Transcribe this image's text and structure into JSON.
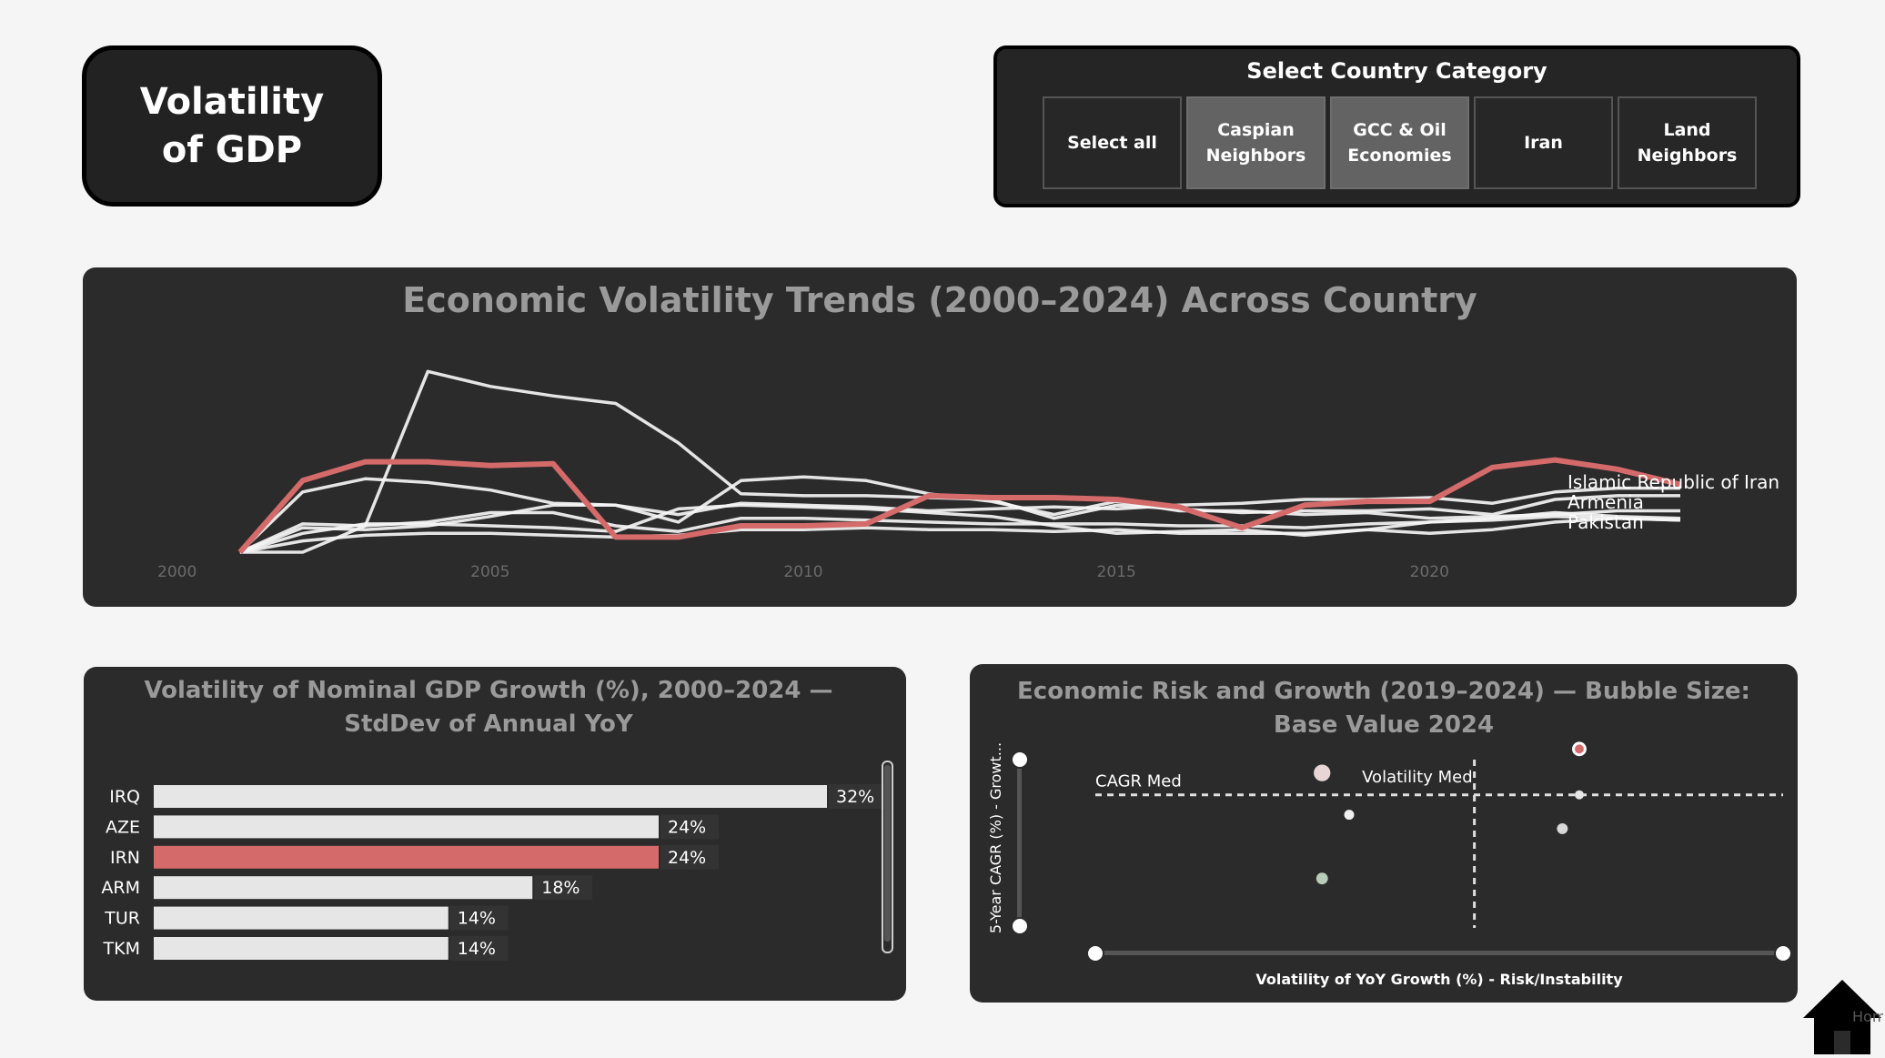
{
  "page": {
    "title": "Volatility of GDP",
    "home_label": "Home"
  },
  "slicer": {
    "title": "Select Country Category",
    "options": [
      {
        "label": "Select all",
        "selected": false
      },
      {
        "label": "Caspian Neighbors",
        "selected": true
      },
      {
        "label": "GCC & Oil Economies",
        "selected": true
      },
      {
        "label": "Iran",
        "selected": false
      },
      {
        "label": "Land Neighbors",
        "selected": false
      }
    ]
  },
  "chart_data": [
    {
      "type": "line",
      "title": "Economic Volatility Trends (2000–2024) Across Country",
      "x_ticks": [
        "2000",
        "2005",
        "2010",
        "2015",
        "2020"
      ],
      "xlim": [
        2000,
        2024
      ],
      "ylim": [
        0,
        10
      ],
      "highlight_color": "#d46a6a",
      "line_color": "#f5f5f5",
      "series": [
        {
          "name": "Islamic Republic of Iran",
          "highlight": true,
          "values": [
            [
              2001,
              0
            ],
            [
              2002,
              3.8
            ],
            [
              2003,
              4.8
            ],
            [
              2004,
              4.8
            ],
            [
              2005,
              4.6
            ],
            [
              2006,
              4.7
            ],
            [
              2007,
              0.8
            ],
            [
              2008,
              0.8
            ],
            [
              2009,
              1.4
            ],
            [
              2010,
              1.4
            ],
            [
              2011,
              1.5
            ],
            [
              2012,
              3.0
            ],
            [
              2013,
              2.9
            ],
            [
              2014,
              2.9
            ],
            [
              2015,
              2.8
            ],
            [
              2016,
              2.4
            ],
            [
              2017,
              1.3
            ],
            [
              2018,
              2.5
            ],
            [
              2019,
              2.7
            ],
            [
              2020,
              2.7
            ],
            [
              2021,
              4.5
            ],
            [
              2022,
              4.9
            ],
            [
              2023,
              4.4
            ],
            [
              2024,
              3.6
            ]
          ]
        },
        {
          "name": "Armenia",
          "highlight": false,
          "values": [
            [
              2001,
              0
            ],
            [
              2002,
              0
            ],
            [
              2003,
              1.4
            ],
            [
              2004,
              9.6
            ],
            [
              2005,
              8.8
            ],
            [
              2006,
              8.3
            ],
            [
              2007,
              7.9
            ],
            [
              2008,
              5.8
            ],
            [
              2009,
              3.1
            ],
            [
              2010,
              3.0
            ],
            [
              2011,
              3.0
            ],
            [
              2012,
              2.9
            ],
            [
              2013,
              2.8
            ],
            [
              2014,
              1.8
            ],
            [
              2015,
              2.5
            ],
            [
              2016,
              2.3
            ],
            [
              2017,
              2.1
            ],
            [
              2018,
              2.2
            ],
            [
              2019,
              2.2
            ],
            [
              2020,
              2.3
            ],
            [
              2021,
              2.0
            ],
            [
              2022,
              2.8
            ],
            [
              2023,
              3.0
            ],
            [
              2024,
              3.0
            ]
          ]
        },
        {
          "name": "Pakistan",
          "highlight": false,
          "values": [
            [
              2001,
              0
            ],
            [
              2002,
              1.5
            ],
            [
              2003,
              1.4
            ],
            [
              2004,
              1.6
            ],
            [
              2005,
              2.1
            ],
            [
              2006,
              2.1
            ],
            [
              2007,
              1.4
            ],
            [
              2008,
              1.1
            ],
            [
              2009,
              1.8
            ],
            [
              2010,
              1.8
            ],
            [
              2011,
              1.7
            ],
            [
              2012,
              1.6
            ],
            [
              2013,
              1.5
            ],
            [
              2014,
              1.5
            ],
            [
              2015,
              1.5
            ],
            [
              2016,
              1.4
            ],
            [
              2017,
              1.4
            ],
            [
              2018,
              1.3
            ],
            [
              2019,
              1.5
            ],
            [
              2020,
              1.6
            ],
            [
              2021,
              1.7
            ],
            [
              2022,
              1.9
            ],
            [
              2023,
              1.8
            ],
            [
              2024,
              1.7
            ]
          ]
        },
        {
          "name": "",
          "highlight": false,
          "values": [
            [
              2001,
              0
            ],
            [
              2002,
              3.2
            ],
            [
              2003,
              3.9
            ],
            [
              2004,
              3.7
            ],
            [
              2005,
              3.3
            ],
            [
              2006,
              2.6
            ],
            [
              2007,
              2.5
            ],
            [
              2008,
              1.6
            ],
            [
              2009,
              3.8
            ],
            [
              2010,
              4.0
            ],
            [
              2011,
              3.8
            ],
            [
              2012,
              3.1
            ],
            [
              2013,
              2.7
            ],
            [
              2014,
              2.0
            ],
            [
              2015,
              2.7
            ],
            [
              2016,
              2.2
            ],
            [
              2017,
              2.2
            ],
            [
              2018,
              2.0
            ],
            [
              2019,
              2.1
            ],
            [
              2020,
              1.8
            ],
            [
              2021,
              1.9
            ],
            [
              2022,
              2.0
            ],
            [
              2023,
              2.2
            ],
            [
              2024,
              2.2
            ]
          ]
        },
        {
          "name": "",
          "highlight": false,
          "values": [
            [
              2001,
              0
            ],
            [
              2002,
              0.6
            ],
            [
              2003,
              0.9
            ],
            [
              2004,
              1.0
            ],
            [
              2005,
              1.0
            ],
            [
              2006,
              0.9
            ],
            [
              2007,
              0.8
            ],
            [
              2008,
              0.9
            ],
            [
              2009,
              1.2
            ],
            [
              2010,
              1.2
            ],
            [
              2011,
              1.3
            ],
            [
              2012,
              1.2
            ],
            [
              2013,
              1.2
            ],
            [
              2014,
              1.1
            ],
            [
              2015,
              1.2
            ],
            [
              2016,
              1.0
            ],
            [
              2017,
              1.0
            ],
            [
              2018,
              1.0
            ],
            [
              2019,
              1.2
            ],
            [
              2020,
              1.0
            ],
            [
              2021,
              1.2
            ],
            [
              2022,
              1.6
            ],
            [
              2023,
              1.8
            ],
            [
              2024,
              1.7
            ]
          ]
        },
        {
          "name": "",
          "highlight": false,
          "values": [
            [
              2001,
              0
            ],
            [
              2002,
              1.0
            ],
            [
              2003,
              1.5
            ],
            [
              2004,
              1.5
            ],
            [
              2005,
              1.4
            ],
            [
              2006,
              1.3
            ],
            [
              2007,
              1.1
            ],
            [
              2008,
              2.3
            ],
            [
              2009,
              2.5
            ],
            [
              2010,
              2.4
            ],
            [
              2011,
              2.3
            ],
            [
              2012,
              2.1
            ],
            [
              2013,
              1.9
            ],
            [
              2014,
              1.4
            ],
            [
              2015,
              1.0
            ],
            [
              2016,
              1.1
            ],
            [
              2017,
              1.2
            ],
            [
              2018,
              0.9
            ],
            [
              2019,
              1.2
            ],
            [
              2020,
              1.6
            ],
            [
              2021,
              1.8
            ],
            [
              2022,
              2.1
            ],
            [
              2023,
              1.9
            ],
            [
              2024,
              1.8
            ]
          ]
        },
        {
          "name": "",
          "highlight": false,
          "values": [
            [
              2001,
              0
            ],
            [
              2002,
              1.3
            ],
            [
              2003,
              1.2
            ],
            [
              2004,
              1.4
            ],
            [
              2005,
              1.9
            ],
            [
              2006,
              2.5
            ],
            [
              2007,
              2.5
            ],
            [
              2008,
              2.0
            ],
            [
              2009,
              2.6
            ],
            [
              2010,
              2.5
            ],
            [
              2011,
              2.4
            ],
            [
              2012,
              2.2
            ],
            [
              2013,
              2.3
            ],
            [
              2014,
              2.4
            ],
            [
              2015,
              2.3
            ],
            [
              2016,
              2.5
            ],
            [
              2017,
              2.6
            ],
            [
              2018,
              2.8
            ],
            [
              2019,
              2.8
            ],
            [
              2020,
              2.9
            ],
            [
              2021,
              2.6
            ],
            [
              2022,
              3.2
            ],
            [
              2023,
              3.4
            ],
            [
              2024,
              3.4
            ]
          ]
        }
      ]
    },
    {
      "type": "bar",
      "orientation": "horizontal",
      "title": "Volatility of Nominal GDP Growth (%), 2000–2024 — StdDev of Annual YoY",
      "categories": [
        "IRQ",
        "AZE",
        "IRN",
        "ARM",
        "TUR",
        "TKM"
      ],
      "values": [
        32,
        24,
        24,
        18,
        14,
        14
      ],
      "labels": [
        "32%",
        "24%",
        "24%",
        "18%",
        "14%",
        "14%"
      ],
      "highlight_category": "IRN",
      "xlim": [
        0,
        32
      ],
      "bar_color": "#e6e6e6",
      "highlight_color": "#d46a6a"
    },
    {
      "type": "scatter",
      "title": "Economic Risk and Growth (2019–2024) — Bubble Size: Base Value 2024",
      "xlabel": "Volatility of YoY Growth (%) - Risk/Instability",
      "ylabel": "5-Year CAGR (%) - Growt...",
      "xlim": [
        0,
        20
      ],
      "ylim": [
        0,
        10
      ],
      "reference_lines": [
        {
          "label": "CAGR Med",
          "axis": "y",
          "value": 7.0
        },
        {
          "label": "Volatility Med",
          "axis": "x",
          "value": 11.2
        }
      ],
      "points": [
        {
          "x": 6.7,
          "y": 8.1,
          "size": 3,
          "color": "#e8d6d6"
        },
        {
          "x": 7.5,
          "y": 6.0,
          "size": 1,
          "color": "#f0f0f0"
        },
        {
          "x": 6.7,
          "y": 2.8,
          "size": 1.4,
          "color": "#b8ccb8"
        },
        {
          "x": 14.3,
          "y": 9.3,
          "size": 1.4,
          "color": "#d46a6a",
          "highlight": true
        },
        {
          "x": 14.3,
          "y": 7.0,
          "size": 0.8,
          "color": "#e6e6e6"
        },
        {
          "x": 13.8,
          "y": 5.3,
          "size": 1.2,
          "color": "#d8d8d8"
        }
      ]
    }
  ]
}
